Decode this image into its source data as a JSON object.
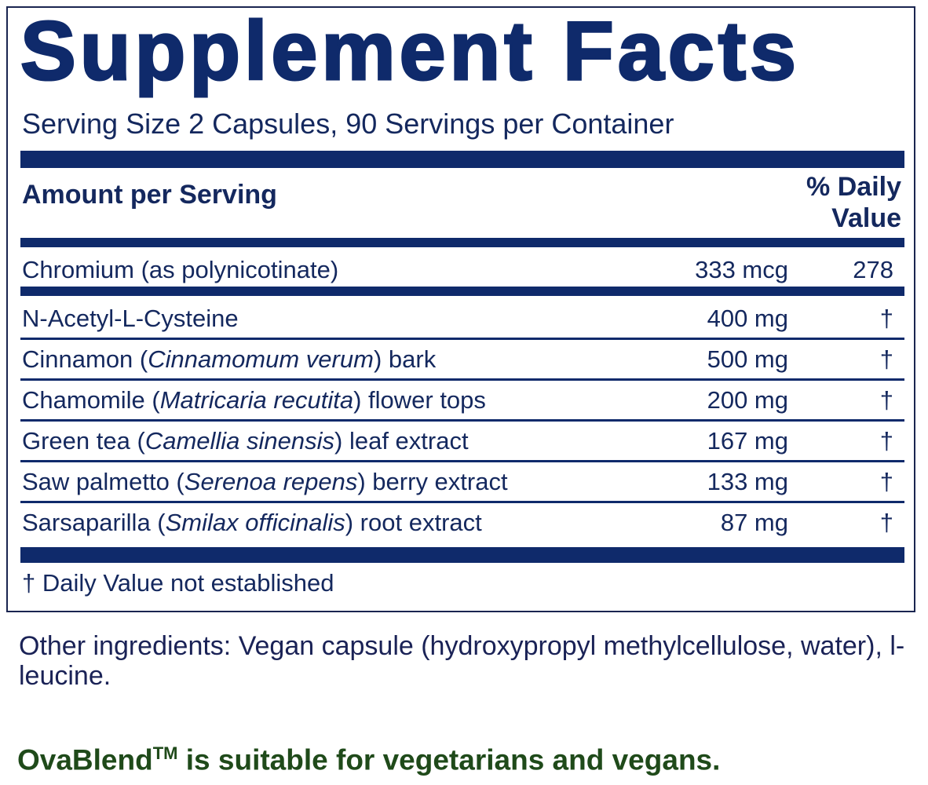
{
  "title": "Supplement Facts",
  "serving": "Serving Size 2 Capsules, 90 Servings per Container",
  "header": {
    "amount": "Amount per Serving",
    "dv_line1": "% Daily",
    "dv_line2": "Value"
  },
  "rows": [
    {
      "name": "Chromium (as polynicotinate)",
      "amount": "333 mcg",
      "dv": "278"
    },
    {
      "name_pre": "N-Acetyl-L-Cysteine",
      "name_italic": "",
      "name_post": "",
      "amount": "400 mg",
      "dv": "†"
    },
    {
      "name_pre": "Cinnamon (",
      "name_italic": "Cinnamomum verum",
      "name_post": ") bark",
      "amount": "500 mg",
      "dv": "†"
    },
    {
      "name_pre": "Chamomile (",
      "name_italic": "Matricaria recutita",
      "name_post": ") flower tops",
      "amount": "200 mg",
      "dv": "†"
    },
    {
      "name_pre": "Green tea (",
      "name_italic": "Camellia sinensis",
      "name_post": ") leaf extract",
      "amount": "167 mg",
      "dv": "†"
    },
    {
      "name_pre": "Saw palmetto (",
      "name_italic": "Serenoa repens",
      "name_post": ") berry extract",
      "amount": "133 mg",
      "dv": "†"
    },
    {
      "name_pre": "Sarsaparilla (",
      "name_italic": "Smilax officinalis",
      "name_post": ") root extract",
      "amount": "87 mg",
      "dv": "†"
    }
  ],
  "footnote": "† Daily Value not established",
  "other_ingredients": "Other ingredients: Vegan capsule (hydroxypropyl methylcellulose, water), l-leucine.",
  "suitability": {
    "brand": "OvaBlend",
    "tm": "TM",
    "text": " is suitable for vegetarians and vegans."
  },
  "colors": {
    "navy": "#0f2a6b",
    "green": "#1f4a1a"
  }
}
